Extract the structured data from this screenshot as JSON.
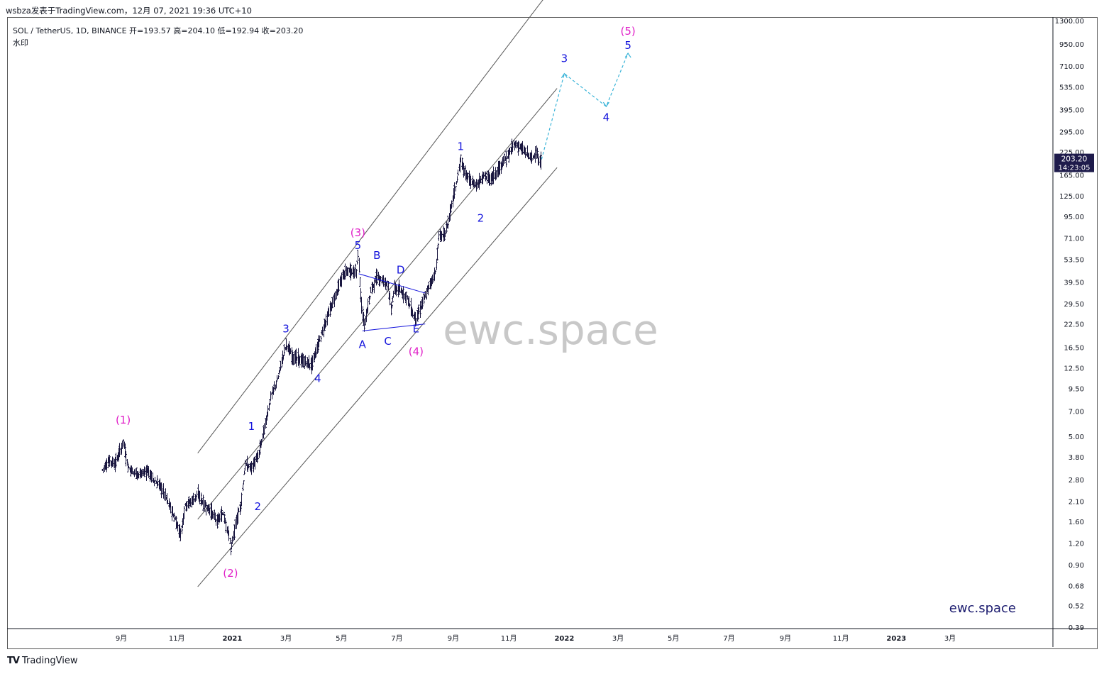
{
  "header": {
    "publish_line": "wsbza发表于TradingView.com，12月 07, 2021 19:36 UTC+10",
    "symbol_line": "SOL / TetherUS, 1D, BINANCE  开=193.57  高=204.10  低=192.94  收=203.20",
    "watermark_label": "水印"
  },
  "footer": {
    "brand": "TradingView",
    "brand_icon": "tradingview-logo-icon"
  },
  "price_tag": {
    "price": "203.20",
    "countdown": "14:23:05",
    "color": "#1e1b4b"
  },
  "watermarks": {
    "center": "ewc.space",
    "corner": "ewc.space"
  },
  "colors": {
    "candles": "#1a1740",
    "wave_blue": "#1414dc",
    "wave_magenta": "#e020c8",
    "projection": "#3ab4d8",
    "channel": "#555555"
  },
  "chart_data": {
    "type": "line",
    "scale": "log",
    "y_ticks": [
      "1300.00",
      "950.00",
      "710.00",
      "535.00",
      "395.00",
      "295.00",
      "225.00",
      "165.00",
      "125.00",
      "95.00",
      "71.00",
      "53.50",
      "39.50",
      "29.50",
      "22.50",
      "16.50",
      "12.50",
      "9.50",
      "7.00",
      "5.00",
      "3.80",
      "2.80",
      "2.10",
      "1.60",
      "1.20",
      "0.90",
      "0.68",
      "0.52",
      "0.39"
    ],
    "x_ticks": [
      "9月",
      "11月",
      "2021",
      "3月",
      "5月",
      "7月",
      "9月",
      "11月",
      "2022",
      "3月",
      "5月",
      "7月",
      "9月",
      "11月",
      "2023",
      "3月"
    ],
    "x_tick_dates": [
      "2020-09-01",
      "2020-11-01",
      "2021-01-01",
      "2021-03-01",
      "2021-05-01",
      "2021-07-01",
      "2021-09-01",
      "2021-11-01",
      "2022-01-01",
      "2022-03-01",
      "2022-05-01",
      "2022-07-01",
      "2022-09-01",
      "2022-11-01",
      "2023-01-01",
      "2023-03-01"
    ],
    "series": [
      {
        "values": [
          [
            "2020-08-11",
            3.2
          ],
          [
            "2020-08-18",
            3.6
          ],
          [
            "2020-08-25",
            3.5
          ],
          [
            "2020-09-01",
            4.3
          ],
          [
            "2020-09-03",
            4.7
          ],
          [
            "2020-09-08",
            3.3
          ],
          [
            "2020-09-15",
            3.1
          ],
          [
            "2020-09-22",
            3.0
          ],
          [
            "2020-09-29",
            3.2
          ],
          [
            "2020-10-06",
            2.8
          ],
          [
            "2020-10-13",
            2.6
          ],
          [
            "2020-10-20",
            2.2
          ],
          [
            "2020-10-27",
            1.8
          ],
          [
            "2020-11-03",
            1.45
          ],
          [
            "2020-11-05",
            1.35
          ],
          [
            "2020-11-10",
            2.0
          ],
          [
            "2020-11-17",
            2.1
          ],
          [
            "2020-11-24",
            2.3
          ],
          [
            "2020-12-01",
            2.0
          ],
          [
            "2020-12-08",
            1.85
          ],
          [
            "2020-12-15",
            1.6
          ],
          [
            "2020-12-22",
            1.8
          ],
          [
            "2020-12-29",
            1.25
          ],
          [
            "2020-12-30",
            1.08
          ],
          [
            "2021-01-05",
            1.6
          ],
          [
            "2021-01-10",
            2.0
          ],
          [
            "2021-01-15",
            3.4
          ],
          [
            "2021-01-22",
            3.3
          ],
          [
            "2021-01-29",
            3.8
          ],
          [
            "2021-02-05",
            5.5
          ],
          [
            "2021-02-12",
            8.5
          ],
          [
            "2021-02-19",
            10.5
          ],
          [
            "2021-02-26",
            15.0
          ],
          [
            "2021-03-01",
            17.2
          ],
          [
            "2021-03-08",
            14.5
          ],
          [
            "2021-03-15",
            14.0
          ],
          [
            "2021-03-22",
            13.5
          ],
          [
            "2021-03-29",
            13.0
          ],
          [
            "2021-04-05",
            17.0
          ],
          [
            "2021-04-12",
            22.0
          ],
          [
            "2021-04-19",
            28.0
          ],
          [
            "2021-04-26",
            35.0
          ],
          [
            "2021-05-03",
            44.0
          ],
          [
            "2021-05-10",
            46.0
          ],
          [
            "2021-05-17",
            45.0
          ],
          [
            "2021-05-19",
            58.0
          ],
          [
            "2021-05-23",
            28.0
          ],
          [
            "2021-05-26",
            22.0
          ],
          [
            "2021-06-02",
            35.0
          ],
          [
            "2021-06-09",
            42.0
          ],
          [
            "2021-06-16",
            40.0
          ],
          [
            "2021-06-21",
            38.0
          ],
          [
            "2021-06-24",
            27.0
          ],
          [
            "2021-06-28",
            36.0
          ],
          [
            "2021-07-05",
            35.0
          ],
          [
            "2021-07-12",
            32.0
          ],
          [
            "2021-07-19",
            25.0
          ],
          [
            "2021-07-22",
            24.0
          ],
          [
            "2021-07-29",
            30.0
          ],
          [
            "2021-08-05",
            37.0
          ],
          [
            "2021-08-12",
            45.0
          ],
          [
            "2021-08-16",
            72.0
          ],
          [
            "2021-08-23",
            75.0
          ],
          [
            "2021-08-30",
            112.0
          ],
          [
            "2021-09-06",
            165.0
          ],
          [
            "2021-09-09",
            205.0
          ],
          [
            "2021-09-13",
            170.0
          ],
          [
            "2021-09-20",
            150.0
          ],
          [
            "2021-09-27",
            145.0
          ],
          [
            "2021-10-04",
            165.0
          ],
          [
            "2021-10-11",
            155.0
          ],
          [
            "2021-10-18",
            170.0
          ],
          [
            "2021-10-25",
            195.0
          ],
          [
            "2021-11-01",
            215.0
          ],
          [
            "2021-11-06",
            250.0
          ],
          [
            "2021-11-13",
            240.0
          ],
          [
            "2021-11-20",
            220.0
          ],
          [
            "2021-11-27",
            205.0
          ],
          [
            "2021-12-01",
            230.0
          ],
          [
            "2021-12-04",
            190.0
          ],
          [
            "2021-12-07",
            203.2
          ]
        ]
      }
    ],
    "projection": [
      [
        "2021-12-07",
        203.2
      ],
      [
        "2022-01-01",
        640.0
      ],
      [
        "2022-02-16",
        412.0
      ],
      [
        "2022-03-12",
        840.0
      ]
    ],
    "triangle_lines": [
      [
        [
          "2021-05-20",
          44.0
        ],
        [
          "2021-08-01",
          34.0
        ]
      ],
      [
        [
          "2021-05-24",
          20.5
        ],
        [
          "2021-08-01",
          22.5
        ]
      ]
    ],
    "channel_lines": [
      [
        [
          "2020-11-24",
          4.0
        ],
        [
          "2021-12-24",
          2200.0
        ]
      ],
      [
        [
          "2020-11-24",
          1.65
        ],
        [
          "2021-12-24",
          525.0
        ]
      ],
      [
        [
          "2020-11-24",
          0.67
        ],
        [
          "2021-12-24",
          182.0
        ]
      ]
    ],
    "wave_labels": [
      {
        "text": "(1)",
        "date": "2020-09-03",
        "price": 6.2,
        "color": "magenta"
      },
      {
        "text": "(2)",
        "date": "2020-12-30",
        "price": 0.8,
        "color": "magenta"
      },
      {
        "text": "1",
        "date": "2021-01-22",
        "price": 5.7,
        "color": "blue"
      },
      {
        "text": "2",
        "date": "2021-01-29",
        "price": 1.95,
        "color": "blue"
      },
      {
        "text": "3",
        "date": "2021-03-01",
        "price": 21.0,
        "color": "blue"
      },
      {
        "text": "4",
        "date": "2021-04-05",
        "price": 10.8,
        "color": "blue"
      },
      {
        "text": "(3)",
        "date": "2021-05-19",
        "price": 76.0,
        "color": "magenta"
      },
      {
        "text": "5",
        "date": "2021-05-19",
        "price": 64.0,
        "color": "blue"
      },
      {
        "text": "A",
        "date": "2021-05-24",
        "price": 17.0,
        "color": "blue"
      },
      {
        "text": "B",
        "date": "2021-06-09",
        "price": 56.0,
        "color": "blue"
      },
      {
        "text": "C",
        "date": "2021-06-21",
        "price": 17.8,
        "color": "blue"
      },
      {
        "text": "D",
        "date": "2021-07-05",
        "price": 46.0,
        "color": "blue"
      },
      {
        "text": "E",
        "date": "2021-07-22",
        "price": 21.0,
        "color": "blue"
      },
      {
        "text": "(4)",
        "date": "2021-07-22",
        "price": 15.5,
        "color": "magenta"
      },
      {
        "text": "1",
        "date": "2021-09-09",
        "price": 240.0,
        "color": "blue"
      },
      {
        "text": "2",
        "date": "2021-10-01",
        "price": 92.0,
        "color": "blue"
      },
      {
        "text": "3",
        "date": "2022-01-01",
        "price": 780.0,
        "color": "blue"
      },
      {
        "text": "4",
        "date": "2022-02-16",
        "price": 355.0,
        "color": "blue"
      },
      {
        "text": "(5)",
        "date": "2022-03-12",
        "price": 1120.0,
        "color": "magenta"
      },
      {
        "text": "5",
        "date": "2022-03-12",
        "price": 930.0,
        "color": "blue"
      }
    ]
  }
}
